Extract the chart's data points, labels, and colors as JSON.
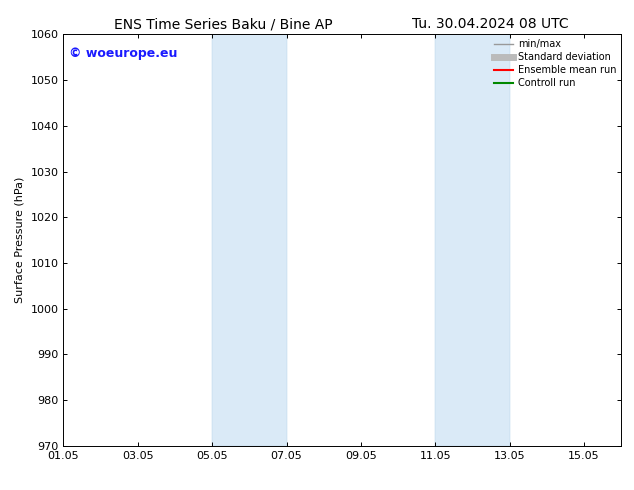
{
  "title_left": "ENS Time Series Baku / Bine AP",
  "title_right": "Tu. 30.04.2024 08 UTC",
  "ylabel": "Surface Pressure (hPa)",
  "ylim": [
    970,
    1060
  ],
  "yticks": [
    970,
    980,
    990,
    1000,
    1010,
    1020,
    1030,
    1040,
    1050,
    1060
  ],
  "xtick_labels": [
    "01.05",
    "03.05",
    "05.05",
    "07.05",
    "09.05",
    "11.05",
    "13.05",
    "15.05"
  ],
  "xtick_positions": [
    0,
    2,
    4,
    6,
    8,
    10,
    12,
    14
  ],
  "xlim": [
    0,
    15
  ],
  "shaded_regions": [
    {
      "start": 4,
      "end": 6
    },
    {
      "start": 10,
      "end": 12
    }
  ],
  "shaded_color": "#daeaf7",
  "shaded_edge_color": "#b0d0e8",
  "background_color": "#ffffff",
  "watermark": "© woeurope.eu",
  "watermark_color": "#1a1aff",
  "legend_entries": [
    {
      "label": "min/max",
      "color": "#999999",
      "lw": 1.0
    },
    {
      "label": "Standard deviation",
      "color": "#bbbbbb",
      "lw": 5.0
    },
    {
      "label": "Ensemble mean run",
      "color": "#ff0000",
      "lw": 1.5
    },
    {
      "label": "Controll run",
      "color": "#008800",
      "lw": 1.5
    }
  ],
  "spine_color": "#000000",
  "font_size": 8,
  "title_font_size": 10,
  "watermark_font_size": 9
}
